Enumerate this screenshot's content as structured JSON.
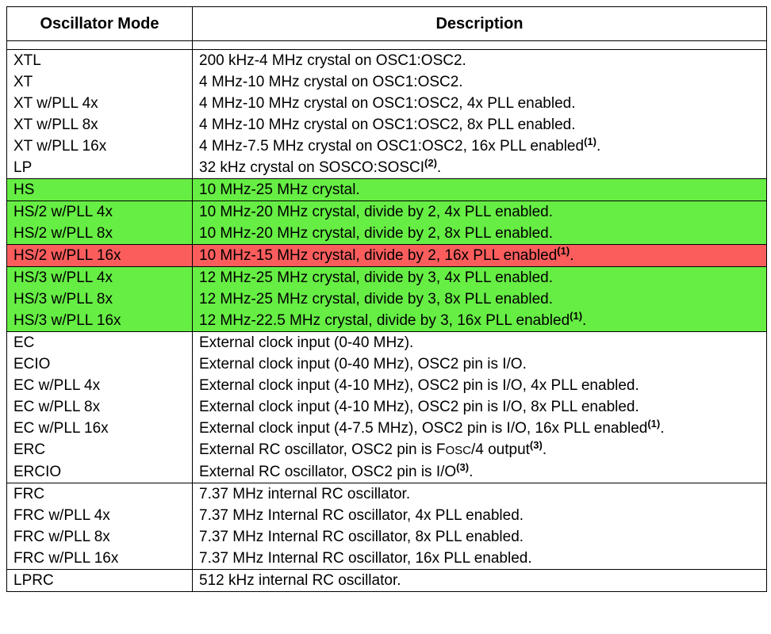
{
  "headers": {
    "mode": "Oscillator Mode",
    "description": "Description"
  },
  "colors": {
    "highlight_green": "#66ee44",
    "highlight_red": "#fb5d5d"
  },
  "groups": [
    {
      "rows": [
        {
          "mode": "XTL",
          "desc": "200 kHz-4 MHz crystal on OSC1:OSC2."
        },
        {
          "mode": "XT",
          "desc": "4 MHz-10 MHz crystal on OSC1:OSC2."
        },
        {
          "mode": "XT w/PLL 4x",
          "desc": "4 MHz-10 MHz crystal on OSC1:OSC2, 4x PLL enabled."
        },
        {
          "mode": "XT w/PLL 8x",
          "desc": "4 MHz-10 MHz crystal on OSC1:OSC2, 8x PLL enabled."
        },
        {
          "mode": "XT w/PLL 16x",
          "desc": "4 MHz-7.5 MHz crystal on OSC1:OSC2, 16x PLL enabled",
          "note": "(1)",
          "end": "."
        },
        {
          "mode": "LP",
          "desc": "32 kHz crystal on SOSCO:SOSCI",
          "note": "(2)",
          "end": "."
        }
      ]
    },
    {
      "rows": [
        {
          "mode": "HS",
          "desc": "10 MHz-25 MHz crystal."
        }
      ]
    },
    {
      "rows": [
        {
          "mode": "HS/2 w/PLL 4x",
          "desc": "10 MHz-20 MHz crystal, divide by 2, 4x PLL enabled."
        },
        {
          "mode": "HS/2 w/PLL 8x",
          "desc": "10 MHz-20 MHz crystal, divide by 2, 8x PLL enabled."
        }
      ]
    },
    {
      "rows": [
        {
          "mode": "HS/2 w/PLL 16x",
          "desc": "10 MHz-15 MHz crystal, divide by 2, 16x PLL enabled",
          "note": "(1)",
          "end": "."
        }
      ]
    },
    {
      "rows": [
        {
          "mode": "HS/3 w/PLL 4x",
          "desc": "12 MHz-25 MHz crystal, divide by 3, 4x PLL enabled."
        },
        {
          "mode": "HS/3 w/PLL 8x",
          "desc": "12 MHz-25 MHz crystal, divide by 3, 8x PLL enabled."
        },
        {
          "mode": "HS/3 w/PLL 16x",
          "desc": "12 MHz-22.5 MHz crystal, divide by 3, 16x PLL enabled",
          "note": "(1)",
          "end": "."
        }
      ]
    },
    {
      "rows": [
        {
          "mode": "EC",
          "desc": "External clock input (0-40 MHz)."
        },
        {
          "mode": "ECIO",
          "desc": "External clock input (0-40 MHz), OSC2 pin is I/O."
        },
        {
          "mode": "EC w/PLL 4x",
          "desc": "External clock input (4-10 MHz), OSC2 pin is I/O, 4x PLL enabled."
        },
        {
          "mode": "EC w/PLL 8x",
          "desc": "External clock input (4-10 MHz), OSC2 pin is I/O, 8x PLL enabled."
        },
        {
          "mode": "EC w/PLL 16x",
          "desc": "External clock input (4-7.5 MHz), OSC2 pin is I/O, 16x PLL enabled",
          "note": "(1)",
          "end": "."
        },
        {
          "mode": "ERC",
          "desc": "External RC oscillator, OSC2 pin is F",
          "sc": "OSC",
          "desc2": "/4 output",
          "note": "(3)",
          "end": "."
        },
        {
          "mode": "ERCIO",
          "desc": "External RC oscillator, OSC2 pin is I/O",
          "note": "(3)",
          "end": "."
        }
      ]
    },
    {
      "rows": [
        {
          "mode": "FRC",
          "desc": "7.37 MHz internal RC oscillator."
        },
        {
          "mode": "FRC w/PLL 4x",
          "desc": "7.37 MHz Internal RC oscillator, 4x PLL enabled."
        },
        {
          "mode": "FRC w/PLL 8x",
          "desc": "7.37 MHz Internal RC oscillator, 8x PLL enabled."
        },
        {
          "mode": "FRC w/PLL 16x",
          "desc": "7.37 MHz Internal RC oscillator, 16x PLL enabled."
        }
      ]
    },
    {
      "rows": [
        {
          "mode": "LPRC",
          "desc": "512 kHz internal RC oscillator."
        }
      ]
    }
  ]
}
